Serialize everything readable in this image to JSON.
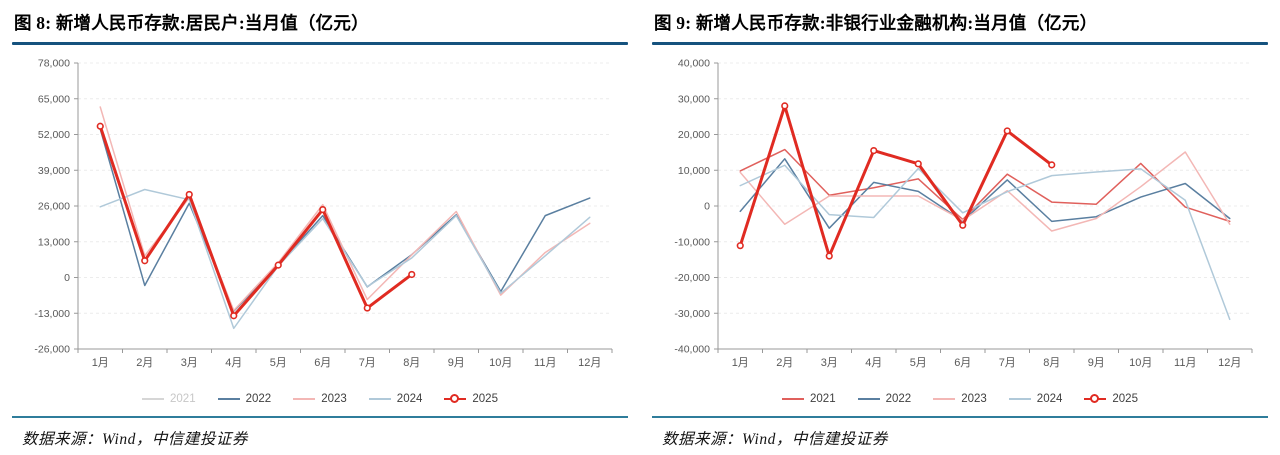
{
  "page": {
    "background": "#ffffff",
    "title_rule_color": "#15527e",
    "footer_rule_color": "#2f7d9b",
    "axis_color": "#999999",
    "tick_label_color": "#595959",
    "grid_color": "#ececec"
  },
  "figures": [
    {
      "title": "图 8: 新增人民币存款:居民户:当月值（亿元）",
      "source": "数据来源：Wind，中信建投证券",
      "chart_data": {
        "type": "line",
        "categories": [
          "1月",
          "2月",
          "3月",
          "4月",
          "5月",
          "6月",
          "7月",
          "8月",
          "9月",
          "10月",
          "11月",
          "12月"
        ],
        "ylim": [
          -26000,
          78000
        ],
        "yticks": [
          78000,
          65000,
          52000,
          39000,
          26000,
          13000,
          0,
          -13000,
          -26000
        ],
        "grid": "horizontal-dashed",
        "legend_position": "bottom",
        "series": [
          {
            "name": "2021",
            "color": "#c9c9c9",
            "dimmed": true,
            "values": null
          },
          {
            "name": "2022",
            "color": "#5a7fa0",
            "values": [
              54000,
              -2900,
              27000,
              -12200,
              4500,
              22500,
              -3400,
              8300,
              22800,
              -5100,
              22500,
              28900
            ]
          },
          {
            "name": "2023",
            "color": "#f3b7b5",
            "values": [
              62000,
              7900,
              29000,
              -12000,
              5400,
              26500,
              -8000,
              8200,
              24000,
              -6400,
              9100,
              19700
            ]
          },
          {
            "name": "2024",
            "color": "#b0c9d9",
            "values": [
              25700,
              32000,
              28300,
              -18500,
              4200,
              21400,
              -3300,
              7100,
              22500,
              -5700,
              7900,
              21900
            ]
          },
          {
            "name": "2025",
            "color": "#e02b22",
            "marker": "circle",
            "line_width": 3,
            "values": [
              55000,
              6100,
              30200,
              -13900,
              4500,
              24700,
              -11100,
              1100
            ]
          }
        ]
      }
    },
    {
      "title": "图 9: 新增人民币存款:非银行业金融机构:当月值（亿元）",
      "source": "数据来源：Wind，中信建投证券",
      "chart_data": {
        "type": "line",
        "categories": [
          "1月",
          "2月",
          "3月",
          "4月",
          "5月",
          "6月",
          "7月",
          "8月",
          "9月",
          "10月",
          "11月",
          "12月"
        ],
        "ylim": [
          -40000,
          40000
        ],
        "yticks": [
          40000,
          30000,
          20000,
          10000,
          0,
          -10000,
          -20000,
          -30000,
          -40000
        ],
        "grid": "horizontal-dashed",
        "legend_position": "bottom",
        "series": [
          {
            "name": "2021",
            "color": "#e0605c",
            "values": [
              9800,
              15800,
              3000,
              5100,
              7600,
              -3800,
              8900,
              1100,
              500,
              11900,
              -300,
              -4300
            ]
          },
          {
            "name": "2022",
            "color": "#5a7fa0",
            "values": [
              -1500,
              13200,
              -6200,
              6600,
              4100,
              -4200,
              7300,
              -4300,
              -3000,
              2500,
              6300,
              -3500
            ]
          },
          {
            "name": "2023",
            "color": "#f3b7b5",
            "values": [
              9400,
              -5100,
              2800,
              2800,
              2800,
              -4000,
              4300,
              -7000,
              -3500,
              5400,
              15100,
              -5100
            ]
          },
          {
            "name": "2024",
            "color": "#b0c9d9",
            "values": [
              5700,
              11400,
              -2400,
              -3200,
              10500,
              -1900,
              4000,
              8500,
              9500,
              10400,
              1600,
              -31700
            ]
          },
          {
            "name": "2025",
            "color": "#e02b22",
            "marker": "circle",
            "line_width": 3,
            "values": [
              -11100,
              28000,
              -14000,
              15500,
              11800,
              -5400,
              21000,
              11500
            ]
          }
        ]
      }
    }
  ]
}
